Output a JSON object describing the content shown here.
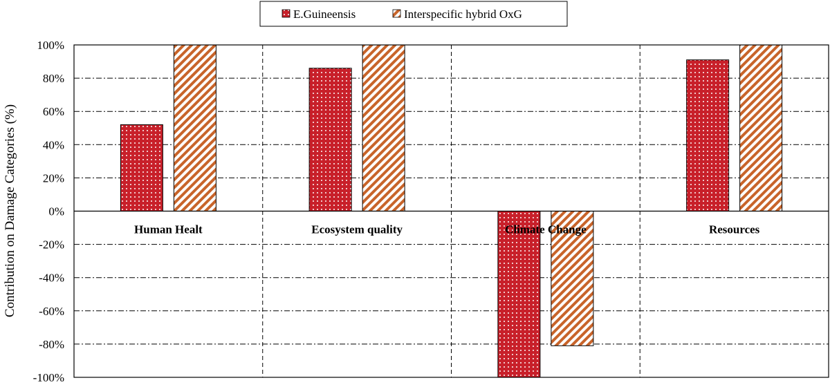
{
  "chart_data": {
    "type": "bar",
    "title": "",
    "xlabel": "",
    "ylabel": "Contribution on Damage Categories (%)",
    "ylim": [
      -100,
      100
    ],
    "ytick_step": 20,
    "ytick_labels": [
      "100%",
      "80%",
      "60%",
      "40%",
      "20%",
      "0%",
      "-20%",
      "-40%",
      "-60%",
      "-80%",
      "-100%"
    ],
    "categories": [
      "Human Healt",
      "Ecosystem quality",
      "Climate Change",
      "Resources"
    ],
    "series": [
      {
        "name": "E.Guineensis",
        "values": [
          52,
          86,
          -100,
          91
        ],
        "pattern": "dots"
      },
      {
        "name": "Interspecific hybrid OxG",
        "values": [
          100,
          100,
          -81,
          100
        ],
        "pattern": "stripes"
      }
    ],
    "legend_position": "top-center",
    "grid": true,
    "colors": {
      "dots_bg": "#c8202a",
      "stripes": "#c8642a",
      "stripes_bg": "#ffffff"
    }
  }
}
